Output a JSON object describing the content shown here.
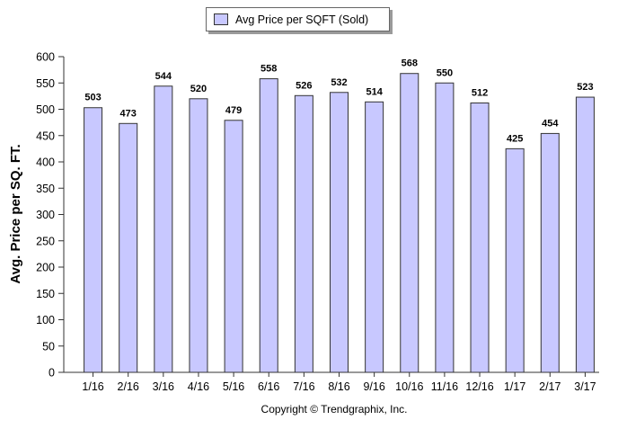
{
  "legend": {
    "label": "Avg Price per SQFT (Sold)"
  },
  "colors": {
    "bar_fill": "#c8c8ff",
    "bar_stroke": "#333333",
    "axis": "#333333"
  },
  "footer": {
    "copyright": "Copyright © Trendgraphix, Inc."
  },
  "chart_data": {
    "type": "bar",
    "title": "",
    "xlabel": "",
    "ylabel": "Avg. Price per SQ. FT.",
    "ylim": [
      0,
      600
    ],
    "yticks": [
      0,
      50,
      100,
      150,
      200,
      250,
      300,
      350,
      400,
      450,
      500,
      550,
      600
    ],
    "grid": false,
    "legend_position": "top-center",
    "categories": [
      "1/16",
      "2/16",
      "3/16",
      "4/16",
      "5/16",
      "6/16",
      "7/16",
      "8/16",
      "9/16",
      "10/16",
      "11/16",
      "12/16",
      "1/17",
      "2/17",
      "3/17"
    ],
    "series": [
      {
        "name": "Avg Price per SQFT (Sold)",
        "values": [
          503,
          473,
          544,
          520,
          479,
          558,
          526,
          532,
          514,
          568,
          550,
          512,
          425,
          454,
          523
        ]
      }
    ]
  }
}
